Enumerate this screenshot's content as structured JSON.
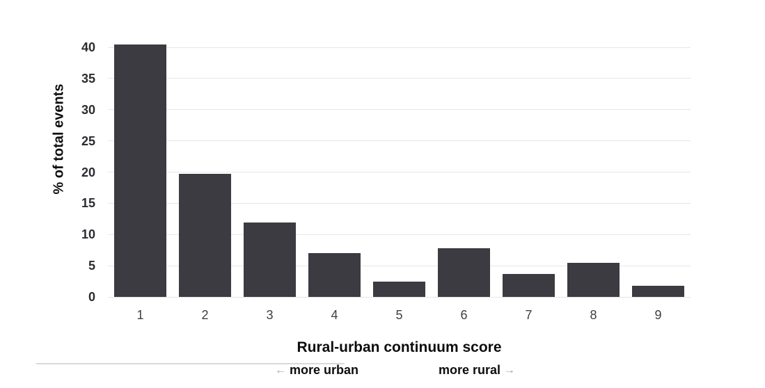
{
  "chart_data": {
    "type": "bar",
    "categories": [
      "1",
      "2",
      "3",
      "4",
      "5",
      "6",
      "7",
      "8",
      "9"
    ],
    "values": [
      40.5,
      19.7,
      11.9,
      7.0,
      2.4,
      7.8,
      3.7,
      5.5,
      1.8
    ],
    "title": "",
    "xlabel": "Rural-urban continuum score",
    "ylabel": "% of total events",
    "ylim": [
      0,
      40
    ],
    "yticks": [
      0,
      5,
      10,
      15,
      20,
      25,
      30,
      35,
      40
    ],
    "grid": true,
    "legend": "none",
    "annotations": {
      "left_label": "more urban",
      "right_label": "more rural",
      "left_arrow_icon": "←",
      "right_arrow_icon": "→"
    }
  },
  "colors": {
    "bar": "#3b3b41",
    "gridline": "#e6e6e6",
    "y_tick_label": "#2b2b30",
    "x_tick_label": "#3c4043",
    "axis_title": "#0d0d0d",
    "arrow": "#a3a3a8",
    "divider": "#d9d9d9",
    "background": "#ffffff"
  }
}
